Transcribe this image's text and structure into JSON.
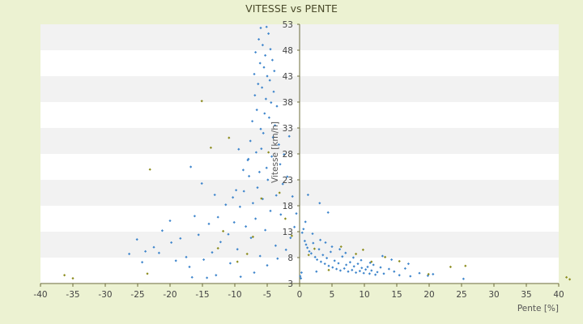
{
  "chart_data": {
    "type": "scatter",
    "title": "VITESSE vs PENTE",
    "xlabel": "Pente [%]",
    "ylabel": "Vitesse [km/h]",
    "xlim": [
      -40,
      40
    ],
    "ylim": [
      3,
      53
    ],
    "x_ticks": [
      -40,
      -35,
      -30,
      -25,
      -20,
      -15,
      -10,
      -5,
      0,
      5,
      10,
      15,
      20,
      25,
      30,
      35,
      40
    ],
    "y_ticks": [
      3,
      8,
      13,
      18,
      23,
      28,
      33,
      38,
      43,
      48,
      53
    ],
    "grid": "horizontal bands",
    "legend": "none",
    "colors": {
      "background": "#ecf2d2",
      "band_light": "#ffffff",
      "band_dark": "#f2f2f2",
      "series_main": "#3f86cc",
      "series_secondary": "#8c8c1e",
      "axis": "#6b6b3a"
    },
    "series": [
      {
        "color": "#3f86cc",
        "points": [
          [
            -6.0,
            52.3
          ],
          [
            -5.1,
            52.5
          ],
          [
            -4.8,
            51.2
          ],
          [
            -6.3,
            50.1
          ],
          [
            -5.7,
            49.0
          ],
          [
            -4.5,
            48.2
          ],
          [
            -6.8,
            47.6
          ],
          [
            -5.3,
            47.0
          ],
          [
            -4.2,
            46.1
          ],
          [
            -6.1,
            45.5
          ],
          [
            -5.5,
            44.7
          ],
          [
            -3.9,
            44.0
          ],
          [
            -7.0,
            43.4
          ],
          [
            -5.0,
            43.0
          ],
          [
            -4.6,
            42.2
          ],
          [
            -6.4,
            41.5
          ],
          [
            -5.8,
            40.8
          ],
          [
            -4.0,
            40.0
          ],
          [
            -6.9,
            39.3
          ],
          [
            -5.2,
            38.6
          ],
          [
            -4.4,
            37.9
          ],
          [
            -3.5,
            37.2
          ],
          [
            -6.6,
            36.5
          ],
          [
            -5.4,
            35.8
          ],
          [
            -4.7,
            35.0
          ],
          [
            -7.3,
            34.3
          ],
          [
            -3.8,
            33.5
          ],
          [
            -6.0,
            32.8
          ],
          [
            -5.6,
            32.0
          ],
          [
            -4.1,
            31.2
          ],
          [
            -7.6,
            30.5
          ],
          [
            -3.2,
            29.8
          ],
          [
            -5.9,
            29.0
          ],
          [
            -6.7,
            28.3
          ],
          [
            -4.3,
            27.5
          ],
          [
            -8.0,
            26.8
          ],
          [
            -3.0,
            26.0
          ],
          [
            -5.1,
            25.3
          ],
          [
            -6.2,
            24.5
          ],
          [
            -7.8,
            23.7
          ],
          [
            -4.9,
            23.0
          ],
          [
            -2.6,
            22.2
          ],
          [
            -6.5,
            21.5
          ],
          [
            -8.6,
            20.8
          ],
          [
            -3.6,
            20.0
          ],
          [
            -5.7,
            19.3
          ],
          [
            -7.2,
            18.5
          ],
          [
            -9.2,
            17.8
          ],
          [
            -4.5,
            17.0
          ],
          [
            -2.9,
            16.3
          ],
          [
            -6.8,
            15.5
          ],
          [
            -10.1,
            14.8
          ],
          [
            -8.3,
            14.0
          ],
          [
            -5.3,
            13.3
          ],
          [
            -11.0,
            12.5
          ],
          [
            -7.5,
            11.8
          ],
          [
            -12.2,
            11.0
          ],
          [
            -3.7,
            10.3
          ],
          [
            -9.6,
            9.6
          ],
          [
            -13.5,
            9.0
          ],
          [
            -6.1,
            8.3
          ],
          [
            -14.8,
            7.6
          ],
          [
            -10.7,
            6.9
          ],
          [
            -17.0,
            6.2
          ],
          [
            -15.6,
            12.4
          ],
          [
            -18.4,
            11.7
          ],
          [
            -19.8,
            10.9
          ],
          [
            -21.2,
            13.2
          ],
          [
            -20.0,
            15.1
          ],
          [
            -22.5,
            10.0
          ],
          [
            -23.8,
            9.2
          ],
          [
            -25.1,
            11.5
          ],
          [
            -26.3,
            8.7
          ],
          [
            -16.2,
            16.0
          ],
          [
            -14.0,
            14.5
          ],
          [
            -12.6,
            15.8
          ],
          [
            -11.4,
            18.2
          ],
          [
            -13.1,
            20.1
          ],
          [
            -9.8,
            21.0
          ],
          [
            -8.7,
            24.9
          ],
          [
            -7.9,
            27.0
          ],
          [
            -9.4,
            28.9
          ],
          [
            -10.3,
            19.6
          ],
          [
            -15.1,
            22.3
          ],
          [
            -16.8,
            25.5
          ],
          [
            -17.5,
            8.1
          ],
          [
            -19.1,
            7.4
          ],
          [
            -21.7,
            8.9
          ],
          [
            -24.3,
            7.1
          ],
          [
            -14.3,
            4.1
          ],
          [
            -12.9,
            4.6
          ],
          [
            -16.6,
            4.2
          ],
          [
            -9.1,
            4.3
          ],
          [
            -7.0,
            5.1
          ],
          [
            -5.0,
            6.5
          ],
          [
            -3.4,
            7.8
          ],
          [
            -2.1,
            9.5
          ],
          [
            -1.4,
            11.8
          ],
          [
            -0.8,
            13.9
          ],
          [
            -0.5,
            16.5
          ],
          [
            -1.1,
            19.8
          ],
          [
            -1.9,
            23.6
          ],
          [
            -2.4,
            27.9
          ],
          [
            -1.6,
            31.4
          ],
          [
            0.2,
            4.0
          ],
          [
            0.1,
            4.4
          ],
          [
            0.3,
            5.1
          ],
          [
            0.4,
            12.8
          ],
          [
            0.6,
            13.5
          ],
          [
            0.8,
            11.2
          ],
          [
            1.0,
            10.5
          ],
          [
            1.2,
            9.9
          ],
          [
            1.5,
            9.2
          ],
          [
            1.8,
            8.8
          ],
          [
            2.1,
            10.8
          ],
          [
            2.4,
            8.1
          ],
          [
            2.7,
            7.6
          ],
          [
            3.0,
            9.6
          ],
          [
            3.3,
            7.2
          ],
          [
            3.6,
            8.5
          ],
          [
            3.9,
            6.8
          ],
          [
            4.2,
            7.9
          ],
          [
            4.5,
            6.4
          ],
          [
            4.8,
            9.1
          ],
          [
            5.1,
            6.1
          ],
          [
            5.4,
            7.4
          ],
          [
            5.7,
            5.8
          ],
          [
            6.0,
            6.9
          ],
          [
            6.3,
            5.5
          ],
          [
            6.6,
            8.2
          ],
          [
            6.9,
            5.9
          ],
          [
            7.2,
            6.6
          ],
          [
            7.5,
            5.3
          ],
          [
            7.8,
            7.1
          ],
          [
            8.1,
            5.6
          ],
          [
            8.4,
            6.3
          ],
          [
            8.7,
            5.1
          ],
          [
            9.0,
            6.8
          ],
          [
            9.3,
            5.4
          ],
          [
            9.6,
            6.0
          ],
          [
            9.9,
            5.0
          ],
          [
            10.2,
            5.7
          ],
          [
            10.5,
            6.2
          ],
          [
            10.8,
            4.9
          ],
          [
            11.1,
            5.5
          ],
          [
            11.4,
            6.6
          ],
          [
            11.7,
            4.7
          ],
          [
            12.0,
            5.2
          ],
          [
            12.5,
            6.1
          ],
          [
            13.0,
            4.9
          ],
          [
            13.8,
            5.8
          ],
          [
            14.6,
            5.3
          ],
          [
            15.4,
            4.6
          ],
          [
            16.3,
            5.9
          ],
          [
            17.1,
            4.4
          ],
          [
            18.5,
            5.0
          ],
          [
            19.8,
            4.5
          ],
          [
            20.6,
            4.8
          ],
          [
            25.3,
            3.9
          ],
          [
            2.0,
            12.6
          ],
          [
            3.2,
            11.4
          ],
          [
            4.0,
            10.9
          ],
          [
            5.0,
            10.1
          ],
          [
            6.2,
            9.6
          ],
          [
            7.1,
            8.9
          ],
          [
            8.3,
            8.0
          ],
          [
            9.5,
            7.5
          ],
          [
            10.9,
            7.0
          ],
          [
            4.4,
            16.7
          ],
          [
            3.1,
            18.5
          ],
          [
            1.3,
            20.1
          ],
          [
            0.9,
            14.9
          ],
          [
            12.8,
            8.3
          ],
          [
            14.2,
            7.6
          ],
          [
            16.8,
            6.8
          ],
          [
            2.6,
            5.3
          ]
        ]
      },
      {
        "color": "#8c8c1e",
        "points": [
          [
            -36.3,
            4.6
          ],
          [
            -35.0,
            4.0
          ],
          [
            -23.5,
            4.9
          ],
          [
            -23.1,
            25.0
          ],
          [
            -15.1,
            38.2
          ],
          [
            -13.7,
            29.2
          ],
          [
            -10.9,
            31.1
          ],
          [
            -9.6,
            7.2
          ],
          [
            -8.1,
            8.7
          ],
          [
            -7.2,
            12.0
          ],
          [
            -11.8,
            13.1
          ],
          [
            -12.6,
            9.8
          ],
          [
            -5.9,
            19.4
          ],
          [
            -4.8,
            28.3
          ],
          [
            -3.1,
            20.5
          ],
          [
            -2.2,
            15.5
          ],
          [
            -1.2,
            12.2
          ],
          [
            1.4,
            8.5
          ],
          [
            2.3,
            9.7
          ],
          [
            4.5,
            5.6
          ],
          [
            6.4,
            10.1
          ],
          [
            8.7,
            8.7
          ],
          [
            9.8,
            9.5
          ],
          [
            11.1,
            7.2
          ],
          [
            13.2,
            8.1
          ],
          [
            15.4,
            7.3
          ],
          [
            19.9,
            4.8
          ],
          [
            23.3,
            6.2
          ],
          [
            25.6,
            6.4
          ],
          [
            41.2,
            4.2
          ],
          [
            41.7,
            3.8
          ]
        ]
      }
    ]
  }
}
